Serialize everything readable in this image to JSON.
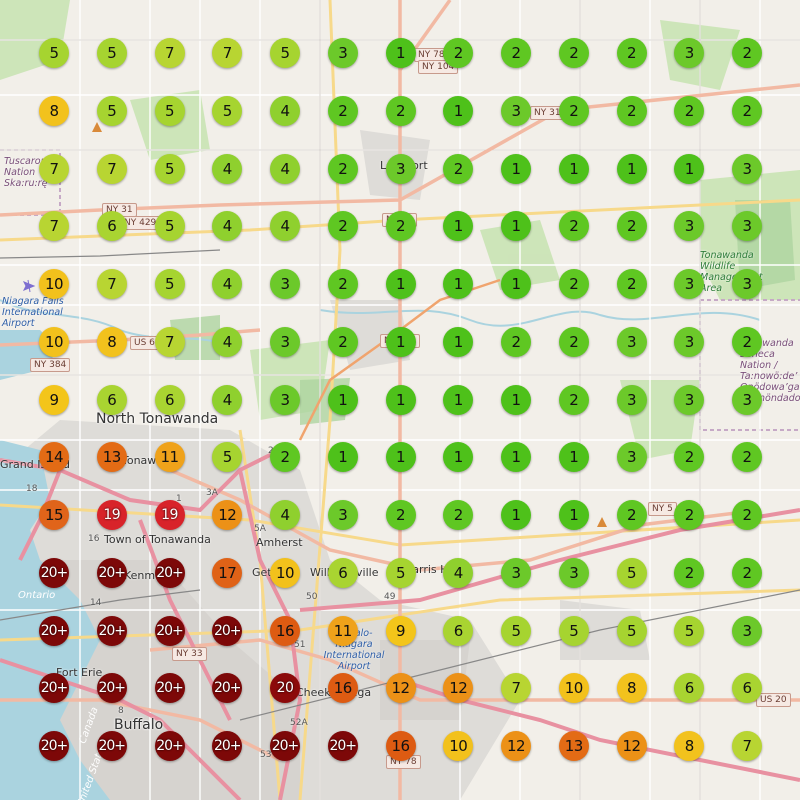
{
  "map": {
    "place_labels": [
      {
        "text": "North Tonawanda",
        "cls": "big"
      },
      {
        "text": "Town of Tonawanda",
        "cls": "mid"
      },
      {
        "text": "Amherst",
        "cls": "mid"
      },
      {
        "text": "Buffalo",
        "cls": "big"
      },
      {
        "text": "Fort Erie",
        "cls": "mid"
      },
      {
        "text": "Kenmore",
        "cls": "mid"
      },
      {
        "text": "Williamsville",
        "cls": "mid"
      },
      {
        "text": "Harris Hill",
        "cls": "mid"
      },
      {
        "text": "Lockport",
        "cls": "mid"
      },
      {
        "text": "Getzville",
        "cls": "mid"
      },
      {
        "text": "Cheektowaga",
        "cls": "mid"
      },
      {
        "text": "Grand Island",
        "cls": "mid"
      },
      {
        "text": "Tonawanda",
        "cls": "mid"
      },
      {
        "text": "Ontario",
        "cls": "water"
      },
      {
        "text": "Canada",
        "cls": "water"
      },
      {
        "text": "United States",
        "cls": "water"
      }
    ],
    "poi_labels": [
      {
        "text": "Tuscarora Nation Ska:ru:rę",
        "cls": "purple"
      },
      {
        "text": "Niagara Falls International Airport",
        "cls": "blue"
      },
      {
        "text": "Buffalo-Niagara International Airport",
        "cls": "blue"
      },
      {
        "text": "Tonawanda Wildlife Management Area",
        "cls": "green"
      },
      {
        "text": "Tonawanda Seneca Nation / Ta:nowö:de’ Onödowa’ga:’ Gaenöndadoh",
        "cls": "purple"
      }
    ],
    "road_shields": [
      "NY 78",
      "NY 104",
      "NY 31",
      "NY 31",
      "NY 429",
      "NY 78",
      "US 62",
      "NY 384",
      "NY 5",
      "NY 33",
      "US 20",
      "NY 78",
      "NY 265"
    ],
    "route_numbers": [
      "18",
      "16",
      "3A",
      "5A",
      "14",
      "8",
      "50",
      "49",
      "51",
      "240",
      "52A",
      "53",
      "1"
    ]
  },
  "colors": {
    "1": "#4ec11a",
    "2": "#5fc722",
    "3": "#6cc92a",
    "4": "#8fd02e",
    "5": "#a6d430",
    "6": "#a9d431",
    "7": "#b8d532",
    "8": "#f2c21d",
    "9": "#f3c51a",
    "10": "#f2c11c",
    "11": "#efa21a",
    "12": "#ec9117",
    "13": "#e36b15",
    "14": "#e36b15",
    "15": "#e0641a",
    "16": "#dd5b12",
    "17": "#df6217",
    "19": "#d8232a",
    "20": "#8c0a0a",
    "20+": "#7d0808"
  },
  "markers": {
    "rows": [
      [
        "5",
        "5",
        "7",
        "7",
        "5",
        "3",
        "1",
        "2",
        "2",
        "2",
        "2",
        "3",
        "2"
      ],
      [
        "8",
        "5",
        "5",
        "5",
        "4",
        "2",
        "2",
        "1",
        "3",
        "2",
        "2",
        "2",
        "2"
      ],
      [
        "7",
        "7",
        "5",
        "4",
        "4",
        "2",
        "3",
        "2",
        "1",
        "1",
        "1",
        "1",
        "3"
      ],
      [
        "7",
        "6",
        "5",
        "4",
        "4",
        "2",
        "2",
        "1",
        "1",
        "2",
        "2",
        "3",
        "3"
      ],
      [
        "10",
        "7",
        "5",
        "4",
        "3",
        "2",
        "1",
        "1",
        "1",
        "2",
        "2",
        "3",
        "3"
      ],
      [
        "10",
        "8",
        "7",
        "4",
        "3",
        "2",
        "1",
        "1",
        "2",
        "2",
        "3",
        "3",
        "2"
      ],
      [
        "9",
        "6",
        "6",
        "4",
        "3",
        "1",
        "1",
        "1",
        "1",
        "2",
        "3",
        "3",
        "3"
      ],
      [
        "14",
        "13",
        "11",
        "5",
        "2",
        "1",
        "1",
        "1",
        "1",
        "1",
        "3",
        "2",
        "2"
      ],
      [
        "15",
        "19",
        "19",
        "12",
        "4",
        "3",
        "2",
        "2",
        "1",
        "1",
        "2",
        "2",
        "2"
      ],
      [
        "20+",
        "20+",
        "20+",
        "17",
        "10",
        "6",
        "5",
        "4",
        "3",
        "3",
        "5",
        "2",
        "2"
      ],
      [
        "20+",
        "20+",
        "20+",
        "20+",
        "16",
        "11",
        "9",
        "6",
        "5",
        "5",
        "5",
        "5",
        "3"
      ],
      [
        "20+",
        "20+",
        "20+",
        "20+",
        "20",
        "16",
        "12",
        "12",
        "7",
        "10",
        "8",
        "6",
        "6"
      ],
      [
        "20+",
        "20+",
        "20+",
        "20+",
        "20+",
        "20+",
        "16",
        "10",
        "12",
        "13",
        "12",
        "8",
        "7"
      ]
    ]
  }
}
